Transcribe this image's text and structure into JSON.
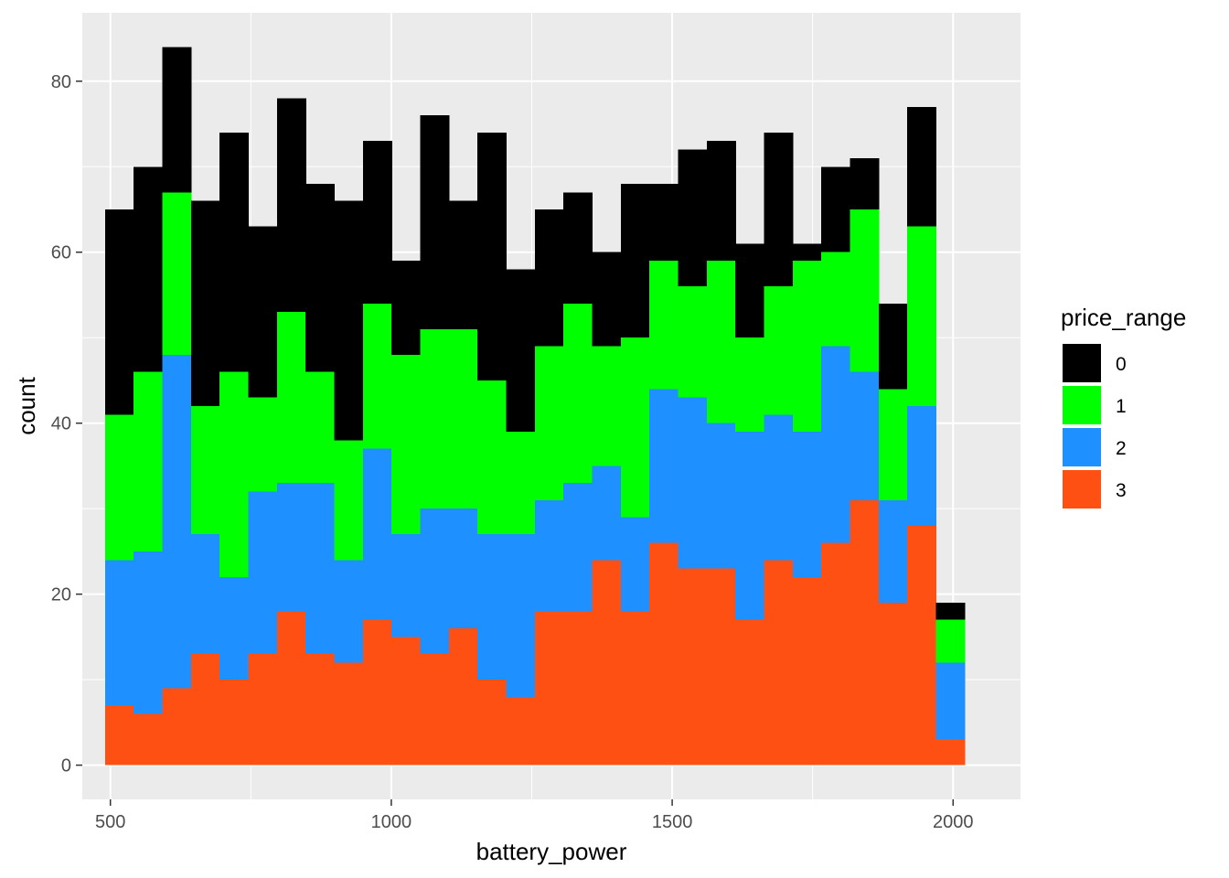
{
  "chart_data": {
    "type": "bar",
    "subtype": "stacked-histogram",
    "xlabel": "battery_power",
    "ylabel": "count",
    "xlim": [
      450,
      2120
    ],
    "ylim": [
      -4,
      88
    ],
    "x_ticks": [
      500,
      1000,
      1500,
      2000
    ],
    "y_ticks": [
      0,
      20,
      40,
      60,
      80
    ],
    "grid": true,
    "legend": {
      "title": "price_range",
      "position": "right"
    },
    "bin_starts": [
      490.5,
      541.5,
      592.5,
      643.5,
      694.5,
      745.5,
      796.5,
      847.5,
      898.5,
      949.5,
      1000.5,
      1051.5,
      1102.5,
      1153.5,
      1204.5,
      1255.5,
      1306.5,
      1357.5,
      1408.5,
      1459.5,
      1510.5,
      1561.5,
      1612.5,
      1663.5,
      1714.5,
      1765.5,
      1816.5,
      1867.5,
      1918.5,
      1969.5,
      2020.5
    ],
    "bin_width": 51,
    "series": [
      {
        "name": "3",
        "color": "#FF5014",
        "values": [
          7,
          6,
          9,
          13,
          10,
          13,
          18,
          13,
          12,
          17,
          15,
          13,
          16,
          10,
          8,
          18,
          18,
          24,
          18,
          26,
          23,
          23,
          17,
          24,
          22,
          26,
          31,
          19,
          28,
          3,
          0
        ]
      },
      {
        "name": "2",
        "color": "#1E90FF",
        "values": [
          17,
          19,
          39,
          14,
          12,
          19,
          15,
          20,
          12,
          20,
          12,
          17,
          14,
          17,
          19,
          13,
          15,
          11,
          11,
          18,
          20,
          17,
          22,
          17,
          17,
          23,
          15,
          12,
          14,
          9,
          0
        ]
      },
      {
        "name": "1",
        "color": "#00FF00",
        "values": [
          17,
          21,
          19,
          15,
          24,
          11,
          20,
          13,
          14,
          17,
          21,
          21,
          21,
          18,
          12,
          18,
          21,
          14,
          21,
          15,
          13,
          19,
          11,
          15,
          20,
          11,
          19,
          13,
          21,
          5,
          0
        ]
      },
      {
        "name": "0",
        "color": "#000000",
        "values": [
          24,
          24,
          17,
          24,
          28,
          20,
          25,
          22,
          28,
          19,
          11,
          25,
          15,
          29,
          19,
          16,
          13,
          11,
          18,
          9,
          16,
          14,
          11,
          18,
          2,
          10,
          6,
          10,
          14,
          2,
          0
        ]
      }
    ],
    "legend_order": [
      "0",
      "1",
      "2",
      "3"
    ]
  },
  "colors": {
    "panel_bg": "#EBEBEB",
    "grid_major": "#FFFFFF",
    "axis_text": "#4D4D4D"
  }
}
